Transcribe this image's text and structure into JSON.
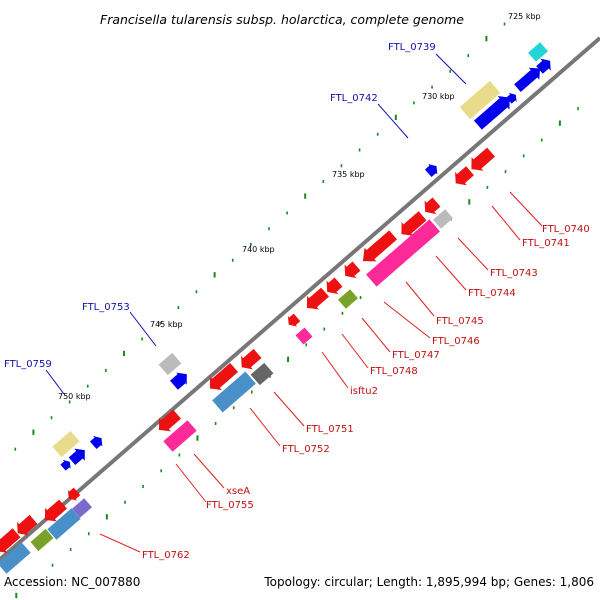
{
  "title": "Francisella tularensis subsp. holarctica, complete genome",
  "footer": {
    "accession": "Accession: NC_007880",
    "summary": "Topology: circular; Length: 1,895,994 bp; Genes: 1,806"
  },
  "scale": [
    "725 kbp",
    "730 kbp",
    "735 kbp",
    "740 kbp",
    "745 kbp",
    "750 kbp"
  ],
  "forward_labels": [
    "FTL_0739",
    "FTL_0742",
    "FTL_0753",
    "FTL_0759"
  ],
  "reverse_labels": [
    "FTL_0740",
    "FTL_0741",
    "FTL_0743",
    "FTL_0744",
    "FTL_0745",
    "FTL_0746",
    "FTL_0747",
    "FTL_0748",
    "isftu2",
    "FTL_0751",
    "FTL_0752",
    "xseA",
    "FTL_0755",
    "FTL_0762"
  ],
  "colors": {
    "forward_gene": "#0000ee",
    "reverse_gene": "#ee1111",
    "pseudogene": "#e8dc8c",
    "rna": "#ff2a9a",
    "backbone": "#777777",
    "tick": "#1a8a1a",
    "cyan": "#22d6d6",
    "olive": "#7aa22a",
    "steel": "#4a90c8",
    "gray": "#bbbbbb",
    "dark_gray": "#666666",
    "purple": "#7a6ad0",
    "forward_label": "#1010b0",
    "reverse_label": "#c01010"
  }
}
